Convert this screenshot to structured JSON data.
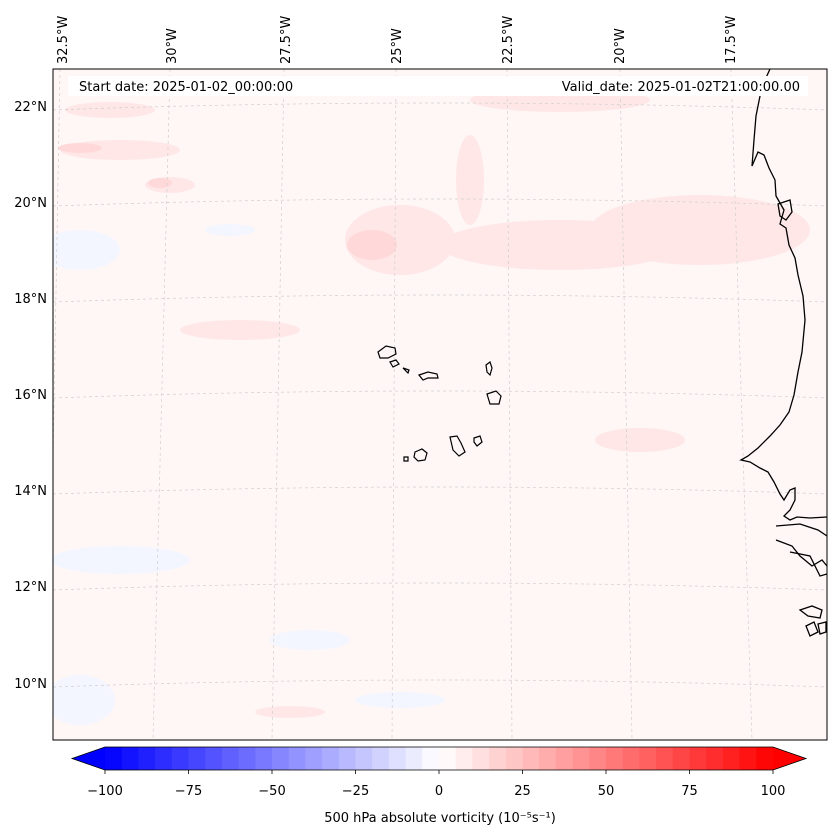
{
  "map": {
    "header": {
      "start_date": "Start date: 2025-01-02_00:00:00",
      "valid_date": "Valid_date: 2025-01-02T21:00:00.00"
    },
    "lon_labels": [
      "32.5°W",
      "30°W",
      "27.5°W",
      "25°W",
      "22.5°W",
      "20°W",
      "17.5°W"
    ],
    "lat_labels": [
      "22°N",
      "20°N",
      "18°N",
      "16°N",
      "14°N",
      "12°N",
      "10°N"
    ],
    "field": "500 hPa absolute vorticity",
    "islands": "Cape Verde",
    "coast": "West Africa (Senegal, Gambia, Guinea-Bissau)"
  },
  "colorbar": {
    "label": "500 hPa absolute vorticity (10⁻⁵s⁻¹)",
    "min": -100,
    "max": 100,
    "ticks": [
      "−100",
      "−75",
      "−50",
      "−25",
      "0",
      "25",
      "50",
      "75",
      "100"
    ],
    "colors": {
      "negative": "#0000ff",
      "zero": "#ffffff",
      "positive": "#ff0000"
    }
  }
}
